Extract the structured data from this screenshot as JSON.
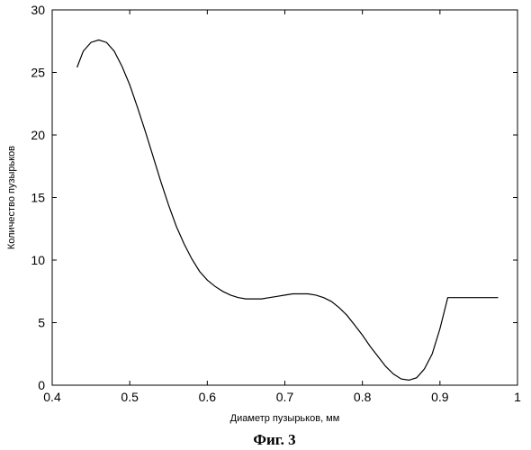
{
  "chart_data": {
    "type": "line",
    "title": "",
    "xlabel": "Диаметр пузырьков, мм",
    "ylabel": "Количество пузырьков",
    "caption": "Фиг. 3",
    "xlim": [
      0.4,
      1.0
    ],
    "ylim": [
      0,
      30
    ],
    "x_ticks": [
      "0.4",
      "0.5",
      "0.6",
      "0.7",
      "0.8",
      "0.9",
      "1"
    ],
    "y_ticks": [
      "0",
      "5",
      "10",
      "15",
      "20",
      "25",
      "30"
    ],
    "grid": false,
    "series": [
      {
        "color": "#000000",
        "x": [
          0.432,
          0.44,
          0.45,
          0.46,
          0.47,
          0.48,
          0.49,
          0.5,
          0.51,
          0.52,
          0.53,
          0.54,
          0.55,
          0.56,
          0.57,
          0.58,
          0.59,
          0.6,
          0.61,
          0.62,
          0.63,
          0.64,
          0.65,
          0.66,
          0.67,
          0.68,
          0.69,
          0.7,
          0.71,
          0.72,
          0.73,
          0.74,
          0.75,
          0.76,
          0.77,
          0.78,
          0.79,
          0.8,
          0.81,
          0.82,
          0.83,
          0.84,
          0.85,
          0.86,
          0.87,
          0.88,
          0.89,
          0.9,
          0.91,
          0.92,
          0.93,
          0.94,
          0.95,
          0.96,
          0.97,
          0.975
        ],
        "y": [
          25.4,
          26.7,
          27.4,
          27.6,
          27.4,
          26.7,
          25.5,
          24.0,
          22.2,
          20.3,
          18.3,
          16.3,
          14.4,
          12.7,
          11.3,
          10.1,
          9.1,
          8.4,
          7.9,
          7.5,
          7.2,
          7.0,
          6.9,
          6.9,
          6.9,
          7.0,
          7.1,
          7.2,
          7.3,
          7.3,
          7.3,
          7.2,
          7.0,
          6.7,
          6.2,
          5.6,
          4.8,
          4.0,
          3.1,
          2.3,
          1.5,
          0.9,
          0.5,
          0.4,
          0.6,
          1.3,
          2.5,
          4.5,
          7.0,
          7.0,
          7.0,
          7.0,
          7.0,
          7.0,
          7.0,
          7.0
        ]
      }
    ]
  }
}
